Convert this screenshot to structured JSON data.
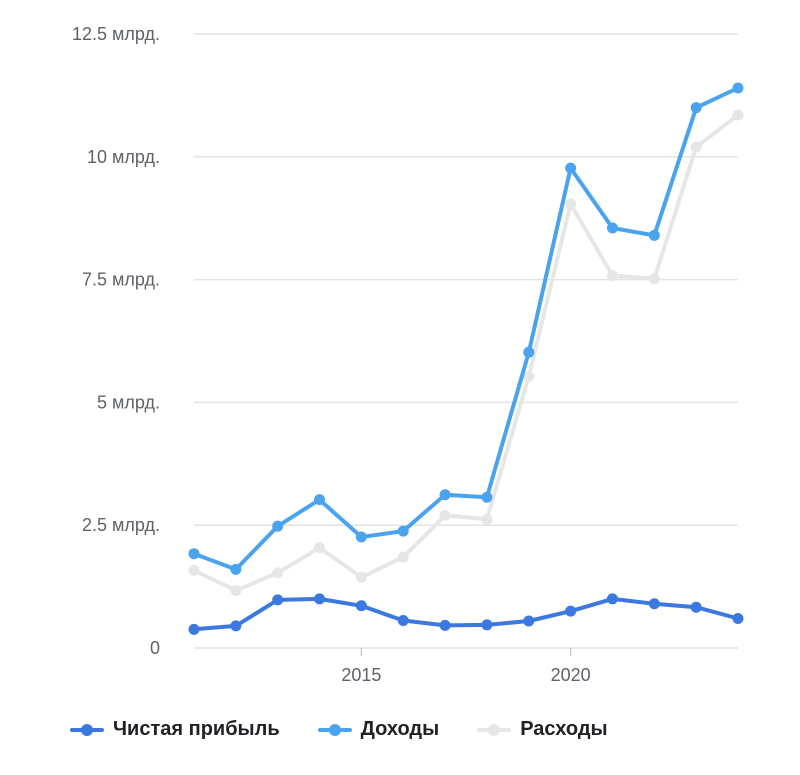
{
  "chart_data": {
    "type": "line",
    "title": "",
    "xlabel": "",
    "ylabel": "",
    "x": [
      2011,
      2012,
      2013,
      2014,
      2015,
      2016,
      2017,
      2018,
      2019,
      2020,
      2021,
      2022,
      2023,
      2024
    ],
    "x_ticks": [
      2015,
      2020
    ],
    "x_tick_labels": [
      "2015",
      "2020"
    ],
    "ylim": [
      0,
      12.5
    ],
    "y_ticks": [
      0,
      2.5,
      5,
      7.5,
      10,
      12.5
    ],
    "y_tick_labels": [
      "0",
      "2.5 млрд.",
      "5 млрд.",
      "7.5 млрд.",
      "10 млрд.",
      "12.5 млрд."
    ],
    "grid": true,
    "legend_position": "bottom",
    "series": [
      {
        "name": "Чистая прибыль",
        "color": "#3b78e0",
        "values": [
          0.38,
          0.45,
          0.98,
          1.0,
          0.86,
          0.56,
          0.46,
          0.47,
          0.55,
          0.75,
          1.0,
          0.9,
          0.83,
          0.6
        ]
      },
      {
        "name": "Доходы",
        "color": "#4aa3ef",
        "values": [
          1.92,
          1.6,
          2.48,
          3.02,
          2.26,
          2.38,
          3.12,
          3.07,
          6.02,
          9.77,
          8.55,
          8.4,
          11.0,
          11.4
        ]
      },
      {
        "name": "Расходы",
        "color": "#e6e6e6",
        "values": [
          1.58,
          1.17,
          1.53,
          2.04,
          1.44,
          1.85,
          2.7,
          2.62,
          5.53,
          9.04,
          7.58,
          7.52,
          10.2,
          10.85
        ]
      }
    ]
  }
}
